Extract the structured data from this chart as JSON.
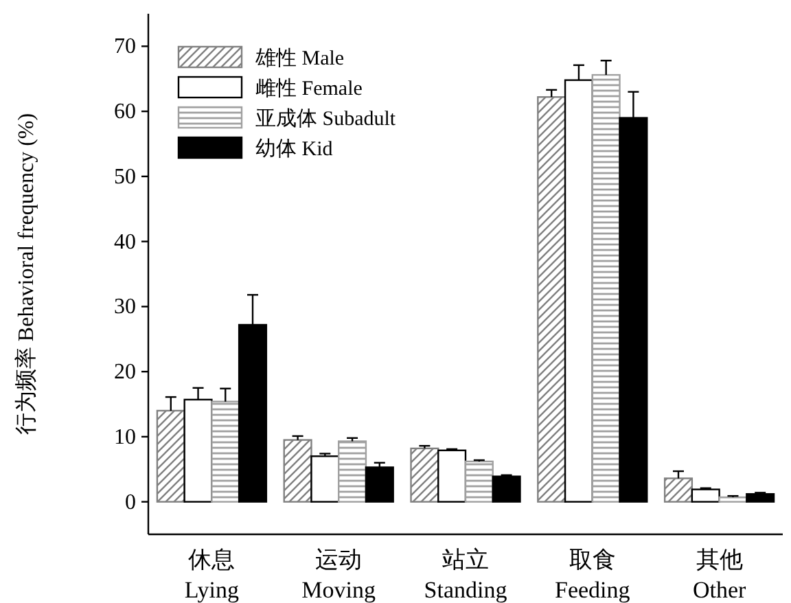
{
  "chart_data": {
    "type": "bar",
    "ylabel": "行为频率 Behavioral frequency (%)",
    "categories": [
      "休息\nLying",
      "运动\nMoving",
      "站立\nStanding",
      "取食\nFeeding",
      "其他\nOther"
    ],
    "series": [
      {
        "name": "雄性 Male",
        "color": "#808080",
        "values": [
          14.0,
          9.5,
          8.2,
          62.2,
          3.6
        ],
        "errors": [
          2.1,
          0.6,
          0.4,
          1.1,
          1.1
        ]
      },
      {
        "name": "雌性 Female",
        "color": "#ffffff",
        "values": [
          15.7,
          7.0,
          7.9,
          64.8,
          1.9
        ],
        "errors": [
          1.8,
          0.4,
          0.2,
          2.3,
          0.2
        ]
      },
      {
        "name": "亚成体 Subadult",
        "color": "#a0a0a0",
        "values": [
          15.4,
          9.3,
          6.2,
          65.6,
          0.7
        ],
        "errors": [
          2.0,
          0.5,
          0.2,
          2.2,
          0.2
        ]
      },
      {
        "name": "幼体 Kid",
        "color": "#000000",
        "values": [
          27.2,
          5.3,
          3.9,
          59.0,
          1.2
        ],
        "errors": [
          4.6,
          0.7,
          0.2,
          4.0,
          0.2
        ]
      }
    ],
    "ylim": [
      -5,
      75
    ],
    "yticks": [
      0,
      10,
      20,
      30,
      40,
      50,
      60,
      70
    ],
    "legend": "top left"
  }
}
